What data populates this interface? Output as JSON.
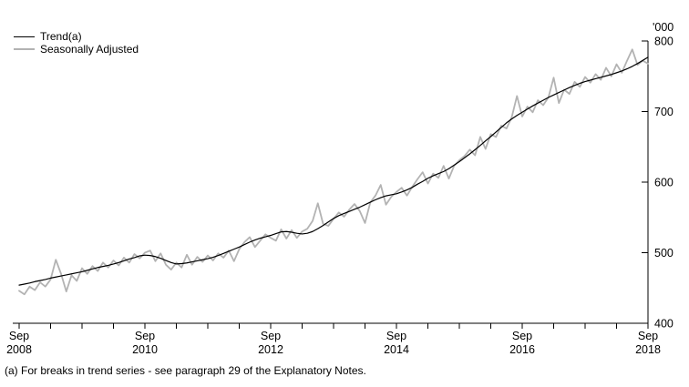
{
  "chart_data": {
    "type": "line",
    "title": "",
    "unit_label": "'000",
    "x_start": "Sep 2008",
    "x_end": "Sep 2018",
    "frequency": "monthly",
    "ylim": [
      400,
      800
    ],
    "y_ticks": [
      800,
      700,
      600,
      500,
      400
    ],
    "x_minor_tick_months": 6,
    "x_tick_labels": [
      {
        "line1": "Sep",
        "line2": "2008",
        "tick_index": 0
      },
      {
        "line1": "Sep",
        "line2": "2010",
        "tick_index": 4
      },
      {
        "line1": "Sep",
        "line2": "2012",
        "tick_index": 8
      },
      {
        "line1": "Sep",
        "line2": "2014",
        "tick_index": 12
      },
      {
        "line1": "Sep",
        "line2": "2016",
        "tick_index": 16
      },
      {
        "line1": "Sep",
        "line2": "2018",
        "tick_index": 20
      }
    ],
    "legend_position": "top-left",
    "grid": false,
    "series": [
      {
        "name": "Trend(a)",
        "color": "#000000",
        "stroke_width": 1.2,
        "values": [
          454,
          455.5,
          457,
          459,
          460.5,
          462,
          464,
          465.5,
          467,
          468.5,
          470,
          471.5,
          473,
          475,
          477,
          479,
          480.5,
          482,
          484,
          486,
          488.5,
          491,
          493,
          495.5,
          496.5,
          496,
          494.5,
          492,
          489,
          486,
          484,
          484.5,
          485.5,
          487,
          488.5,
          490,
          491.5,
          493.5,
          496,
          499,
          502,
          505,
          508,
          511.5,
          515,
          518,
          520.5,
          522.5,
          524.5,
          527,
          529.5,
          530,
          529,
          527.5,
          526.5,
          527.5,
          530,
          534,
          538.5,
          543.5,
          548.5,
          552.5,
          555.5,
          558.5,
          561.5,
          564.5,
          568,
          571.5,
          575,
          578,
          580.5,
          582,
          583.5,
          586,
          589,
          592.5,
          597,
          601,
          605.5,
          609,
          612,
          615,
          619,
          624,
          629,
          634.5,
          640,
          646,
          652,
          658.5,
          664.5,
          671,
          677.5,
          684,
          689.5,
          694.5,
          699,
          703.5,
          708,
          712,
          716,
          720,
          723.5,
          727,
          730.5,
          734,
          737,
          740,
          742.5,
          744.5,
          746.5,
          748.5,
          750.5,
          752.5,
          755,
          757.5,
          760.5,
          764,
          768,
          772.5,
          777
        ]
      },
      {
        "name": "Seasonally Adjusted",
        "color": "#b3b3b3",
        "stroke_width": 1.8,
        "values": [
          446,
          441,
          452,
          447,
          458,
          452,
          462,
          490,
          470,
          445,
          468,
          460,
          478,
          470,
          481,
          474,
          486,
          479,
          489,
          482,
          493,
          486,
          498,
          492,
          500,
          503,
          488,
          499,
          483,
          476,
          486,
          479,
          497,
          483,
          494,
          487,
          496,
          489,
          499,
          493,
          503,
          488,
          505,
          515,
          522,
          508,
          517,
          526,
          521,
          517,
          533,
          520,
          532,
          521,
          530,
          534,
          545,
          570,
          541,
          538,
          548,
          557,
          551,
          561,
          569,
          559,
          542,
          571,
          581,
          596,
          568,
          579,
          586,
          592,
          581,
          593,
          604,
          614,
          598,
          612,
          606,
          623,
          605,
          623,
          631,
          637,
          646,
          638,
          664,
          647,
          668,
          664,
          680,
          676,
          692,
          722,
          693,
          707,
          699,
          716,
          709,
          720,
          748,
          712,
          731,
          725,
          742,
          735,
          749,
          741,
          753,
          745,
          762,
          750,
          767,
          755,
          772,
          788,
          766,
          772,
          768
        ]
      }
    ]
  },
  "footnote": "(a) For breaks in trend series - see paragraph 29 of the Explanatory Notes."
}
